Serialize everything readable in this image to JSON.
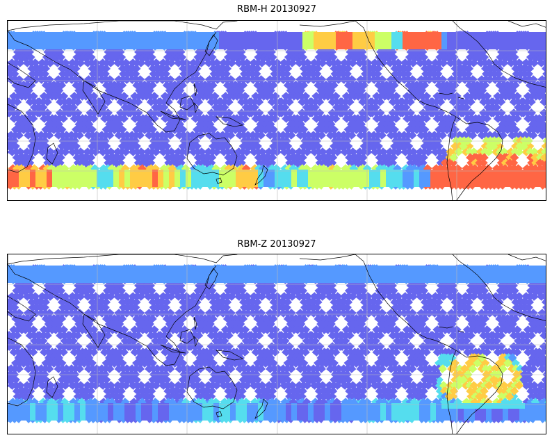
{
  "panels": [
    {
      "title": "RBM-H 20130927",
      "colormap": "jet",
      "high_regions": [
        "south-america-south-atlantic",
        "southern-ocean-band",
        "north-pacific-arctic-edge"
      ]
    },
    {
      "title": "RBM-Z 20130927",
      "colormap": "jet",
      "high_regions": [
        "south-atlantic-off-brazil"
      ]
    }
  ],
  "colors": {
    "low": "#6666ee",
    "mid_low": "#5599ff",
    "mid": "#55ddee",
    "mid_high": "#ccff66",
    "high": "#ffcc44",
    "max": "#ff6644",
    "coastline": "#000000",
    "gridline": "#bbbbbb"
  }
}
